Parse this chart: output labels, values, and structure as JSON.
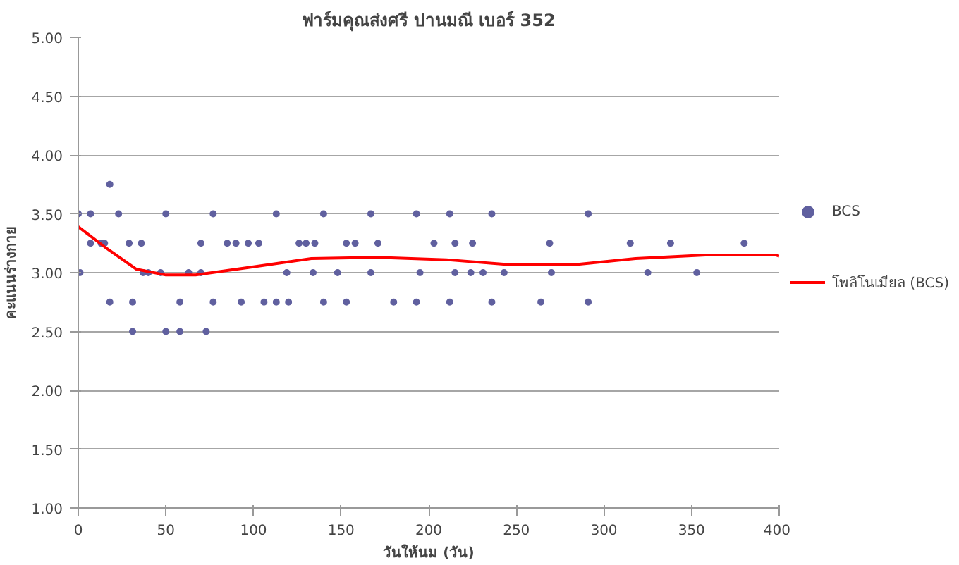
{
  "chart_data": {
    "type": "scatter",
    "title": "ฟาร์มคุณส่งศรี ปานมณี เบอร์ 352",
    "xlabel": "วันให้นม (วัน)",
    "ylabel": "คะแนนร่างกาย",
    "xlim": [
      0,
      400
    ],
    "xticks": [
      0,
      50,
      100,
      150,
      200,
      250,
      300,
      350,
      400
    ],
    "ylim": [
      1,
      5
    ],
    "yticks": [
      {
        "value": 1,
        "label": "1.00"
      },
      {
        "value": 1.5,
        "label": "1.50"
      },
      {
        "value": 2,
        "label": "2.00"
      },
      {
        "value": 2.5,
        "label": "2.50"
      },
      {
        "value": 3,
        "label": "3.00"
      },
      {
        "value": 3.5,
        "label": "3.50"
      },
      {
        "value": 4,
        "label": "4.00"
      },
      {
        "value": 4.5,
        "label": "4.50"
      },
      {
        "value": 5,
        "label": "5.00"
      }
    ],
    "grid": "y",
    "legend": "right",
    "series": [
      {
        "name": "BCS",
        "marker": "circle",
        "color": "#60609f",
        "x": [
          0,
          7,
          23,
          50,
          77,
          113,
          140,
          167,
          193,
          212,
          236,
          291,
          18,
          7,
          13,
          15,
          29,
          36,
          70,
          85,
          90,
          97,
          103,
          126,
          130,
          135,
          153,
          158,
          171,
          203,
          215,
          225,
          269,
          315,
          338,
          380,
          1,
          37,
          40,
          47,
          63,
          70,
          119,
          134,
          148,
          167,
          195,
          215,
          224,
          231,
          243,
          270,
          325,
          353,
          18,
          31,
          58,
          77,
          93,
          106,
          113,
          120,
          140,
          153,
          180,
          193,
          212,
          236,
          264,
          291,
          31,
          50,
          58,
          73
        ],
        "values": [
          3.5,
          3.5,
          3.5,
          3.5,
          3.5,
          3.5,
          3.5,
          3.5,
          3.5,
          3.5,
          3.5,
          3.5,
          3.75,
          3.25,
          3.25,
          3.25,
          3.25,
          3.25,
          3.25,
          3.25,
          3.25,
          3.25,
          3.25,
          3.25,
          3.25,
          3.25,
          3.25,
          3.25,
          3.25,
          3.25,
          3.25,
          3.25,
          3.25,
          3.25,
          3.25,
          3.25,
          3,
          3,
          3,
          3,
          3,
          3,
          3,
          3,
          3,
          3,
          3,
          3,
          3,
          3,
          3,
          3,
          3,
          3,
          2.75,
          2.75,
          2.75,
          2.75,
          2.75,
          2.75,
          2.75,
          2.75,
          2.75,
          2.75,
          2.75,
          2.75,
          2.75,
          2.75,
          2.75,
          2.75,
          2.5,
          2.5,
          2.5,
          2.5
        ]
      },
      {
        "name": "โพลิโนเมียล (BCS)",
        "type": "line",
        "marker": "none",
        "line_style": "solid",
        "color": "#ff0000",
        "x": [
          0,
          15,
          33,
          50,
          67,
          100,
          133,
          170,
          210,
          244,
          285,
          318,
          358,
          398,
          400
        ],
        "values": [
          3.39,
          3.22,
          3.03,
          2.98,
          2.98,
          3.05,
          3.12,
          3.13,
          3.11,
          3.07,
          3.07,
          3.12,
          3.15,
          3.15,
          3.14
        ]
      }
    ]
  }
}
